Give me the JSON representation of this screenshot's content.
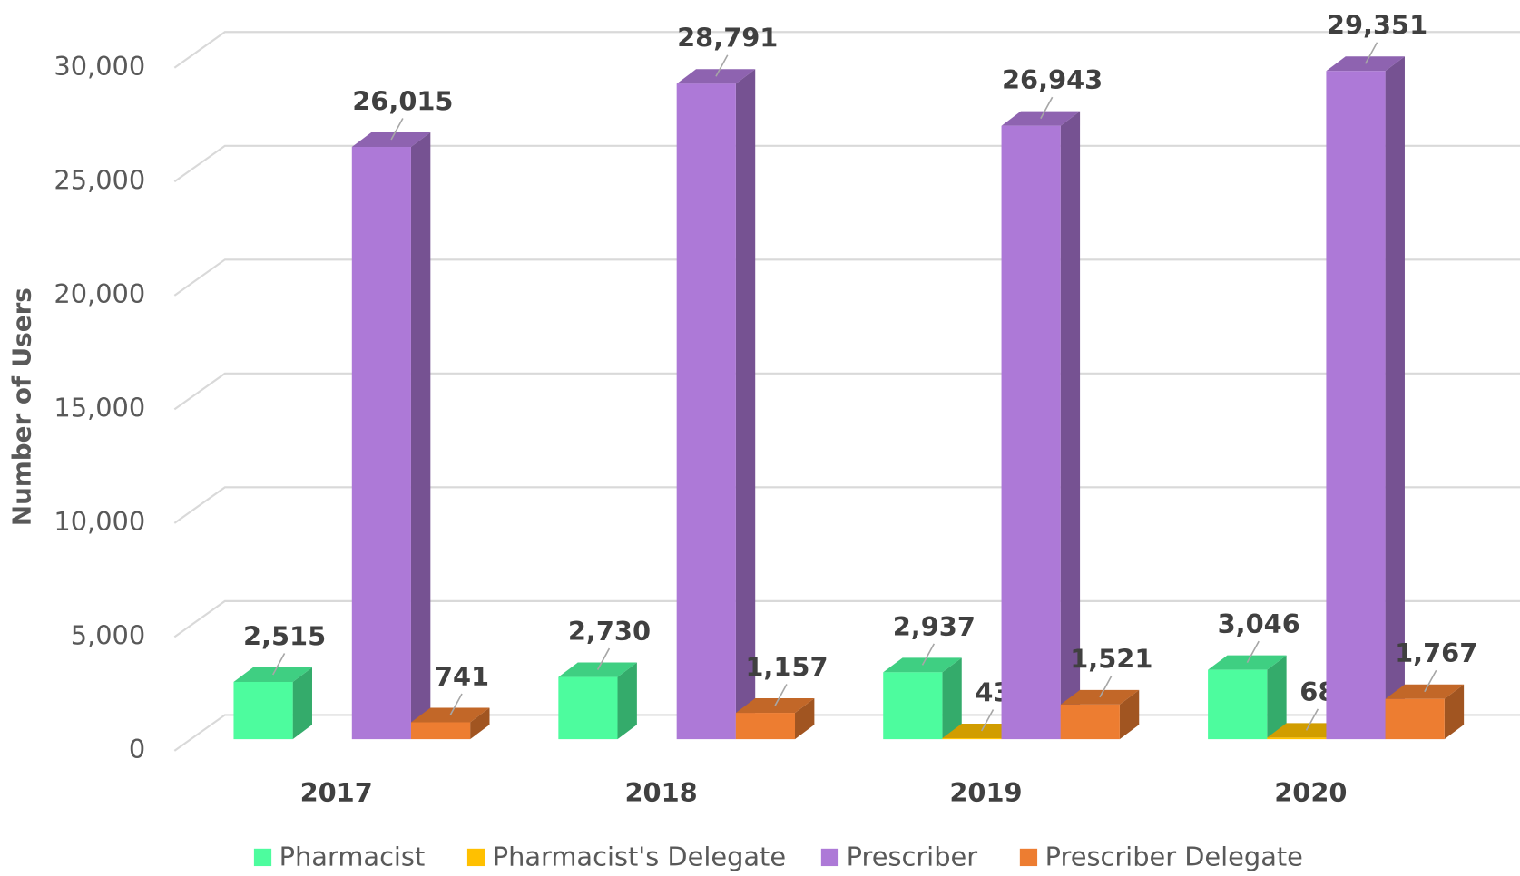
{
  "chart_data": {
    "type": "bar3d",
    "y_label": "Number of Users",
    "categories": [
      "2017",
      "2018",
      "2019",
      "2020"
    ],
    "series": [
      {
        "name": "Pharmacist",
        "color": "#4dfc9e",
        "values": [
          2515,
          2730,
          2937,
          3046
        ],
        "value_labels": [
          "2,515",
          "2,730",
          "2,937",
          "3,046"
        ]
      },
      {
        "name": "Pharmacist's Delegate",
        "color": "#ffc000",
        "values": [
          null,
          null,
          43,
          68
        ],
        "value_labels": [
          null,
          null,
          "43",
          "68"
        ]
      },
      {
        "name": "Prescriber",
        "color": "#ad79d7",
        "values": [
          26015,
          28791,
          26943,
          29351
        ],
        "value_labels": [
          "26,015",
          "28,791",
          "26,943",
          "29,351"
        ]
      },
      {
        "name": "Prescriber Delegate",
        "color": "#ed7d31",
        "values": [
          741,
          1157,
          1521,
          1767
        ],
        "value_labels": [
          "741",
          "1,157",
          "1,521",
          "1,767"
        ]
      }
    ],
    "ylim": [
      0,
      30000
    ],
    "yticks": [
      0,
      {
        "value": 5000,
        "label": "5,000"
      },
      {
        "value": 10000,
        "label": "10,000"
      },
      {
        "value": 15000,
        "label": "15,000"
      },
      {
        "value": 20000,
        "label": "20,000"
      },
      {
        "value": 25000,
        "label": "25,000"
      },
      {
        "value": 30000,
        "label": "30,000"
      }
    ],
    "grid": true,
    "legend": "bottom"
  }
}
